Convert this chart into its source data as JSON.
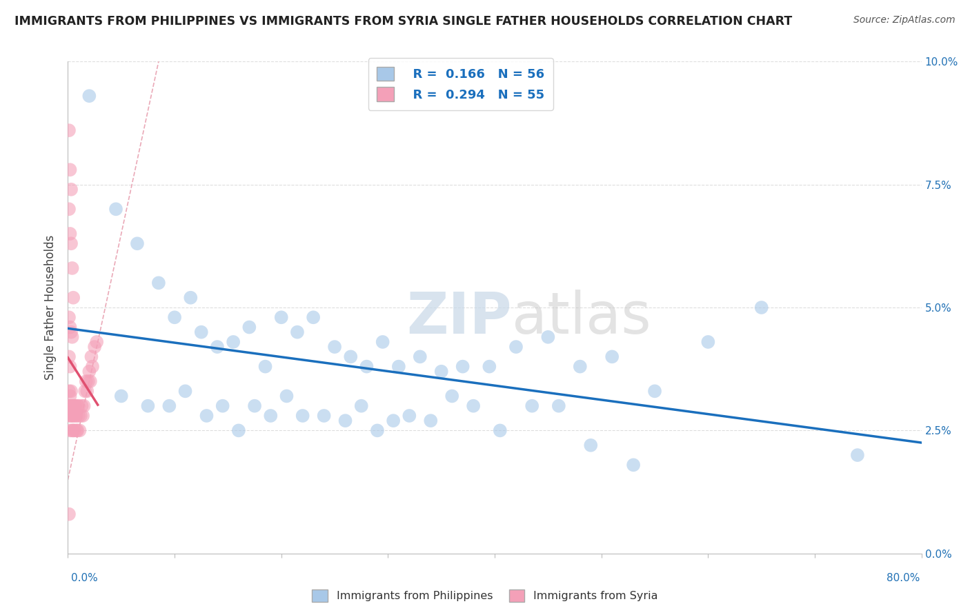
{
  "title": "IMMIGRANTS FROM PHILIPPINES VS IMMIGRANTS FROM SYRIA SINGLE FATHER HOUSEHOLDS CORRELATION CHART",
  "source": "Source: ZipAtlas.com",
  "ylabel": "Single Father Households",
  "x_min": 0.0,
  "x_max": 0.8,
  "y_min": 0.0,
  "y_max": 0.1,
  "philippines_R": 0.166,
  "philippines_N": 56,
  "syria_R": 0.294,
  "syria_N": 55,
  "philippines_color": "#a8c8e8",
  "syria_color": "#f4a0b8",
  "philippines_line_color": "#1a6fbd",
  "syria_line_color": "#e05070",
  "diagonal_color": "#e8a0b0",
  "watermark_zip": "ZIP",
  "watermark_atlas": "atlas",
  "philippines_x": [
    0.02,
    0.045,
    0.065,
    0.085,
    0.1,
    0.115,
    0.125,
    0.14,
    0.155,
    0.17,
    0.185,
    0.2,
    0.215,
    0.23,
    0.25,
    0.265,
    0.28,
    0.295,
    0.31,
    0.33,
    0.35,
    0.37,
    0.395,
    0.42,
    0.45,
    0.48,
    0.51,
    0.55,
    0.6,
    0.65,
    0.05,
    0.075,
    0.095,
    0.11,
    0.13,
    0.145,
    0.16,
    0.175,
    0.19,
    0.205,
    0.22,
    0.24,
    0.26,
    0.275,
    0.29,
    0.305,
    0.32,
    0.34,
    0.36,
    0.38,
    0.405,
    0.435,
    0.46,
    0.49,
    0.53,
    0.74
  ],
  "philippines_y": [
    0.093,
    0.07,
    0.063,
    0.055,
    0.048,
    0.052,
    0.045,
    0.042,
    0.043,
    0.046,
    0.038,
    0.048,
    0.045,
    0.048,
    0.042,
    0.04,
    0.038,
    0.043,
    0.038,
    0.04,
    0.037,
    0.038,
    0.038,
    0.042,
    0.044,
    0.038,
    0.04,
    0.033,
    0.043,
    0.05,
    0.032,
    0.03,
    0.03,
    0.033,
    0.028,
    0.03,
    0.025,
    0.03,
    0.028,
    0.032,
    0.028,
    0.028,
    0.027,
    0.03,
    0.025,
    0.027,
    0.028,
    0.027,
    0.032,
    0.03,
    0.025,
    0.03,
    0.03,
    0.022,
    0.018,
    0.02
  ],
  "syria_x": [
    0.001,
    0.001,
    0.001,
    0.002,
    0.002,
    0.002,
    0.003,
    0.003,
    0.003,
    0.004,
    0.004,
    0.004,
    0.005,
    0.005,
    0.005,
    0.006,
    0.006,
    0.007,
    0.007,
    0.008,
    0.008,
    0.009,
    0.009,
    0.01,
    0.01,
    0.011,
    0.012,
    0.013,
    0.014,
    0.015,
    0.016,
    0.017,
    0.018,
    0.019,
    0.02,
    0.021,
    0.022,
    0.023,
    0.025,
    0.027,
    0.001,
    0.002,
    0.003,
    0.001,
    0.002,
    0.003,
    0.004,
    0.005,
    0.001,
    0.002,
    0.003,
    0.004,
    0.001,
    0.002,
    0.001
  ],
  "syria_y": [
    0.033,
    0.03,
    0.028,
    0.032,
    0.03,
    0.025,
    0.03,
    0.028,
    0.033,
    0.03,
    0.028,
    0.025,
    0.03,
    0.028,
    0.025,
    0.03,
    0.025,
    0.028,
    0.03,
    0.025,
    0.028,
    0.03,
    0.025,
    0.028,
    0.03,
    0.025,
    0.028,
    0.03,
    0.028,
    0.03,
    0.033,
    0.035,
    0.033,
    0.035,
    0.037,
    0.035,
    0.04,
    0.038,
    0.042,
    0.043,
    0.086,
    0.078,
    0.074,
    0.07,
    0.065,
    0.063,
    0.058,
    0.052,
    0.048,
    0.046,
    0.045,
    0.044,
    0.04,
    0.038,
    0.008
  ]
}
